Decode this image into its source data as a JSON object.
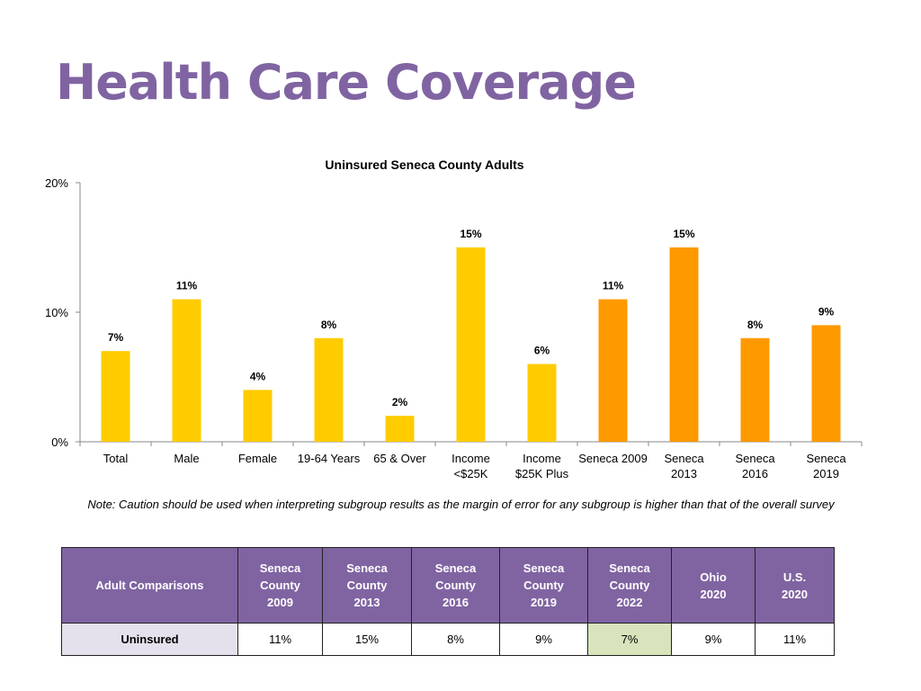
{
  "page": {
    "title": "Health Care Coverage"
  },
  "chart_data": {
    "type": "bar",
    "title": "Uninsured Seneca County Adults",
    "categories": [
      [
        "Total"
      ],
      [
        "Male"
      ],
      [
        "Female"
      ],
      [
        "19-64 Years"
      ],
      [
        "65 & Over"
      ],
      [
        "Income",
        "<$25K"
      ],
      [
        "Income",
        "$25K Plus"
      ],
      [
        "Seneca 2009"
      ],
      [
        "Seneca",
        "2013"
      ],
      [
        "Seneca",
        "2016"
      ],
      [
        "Seneca",
        "2019"
      ]
    ],
    "values": [
      7,
      11,
      4,
      8,
      2,
      15,
      6,
      11,
      15,
      8,
      9
    ],
    "data_labels": [
      "7%",
      "11%",
      "4%",
      "8%",
      "2%",
      "15%",
      "6%",
      "11%",
      "15%",
      "8%",
      "9%"
    ],
    "bar_colors": [
      "#FFCC00",
      "#FFCC00",
      "#FFCC00",
      "#FFCC00",
      "#FFCC00",
      "#FFCC00",
      "#FFCC00",
      "#FF9900",
      "#FF9900",
      "#FF9900",
      "#FF9900"
    ],
    "ylim": [
      0,
      20
    ],
    "yticks": [
      0,
      10,
      20
    ],
    "ytick_labels": [
      "0%",
      "10%",
      "20%"
    ],
    "xlabel": "",
    "ylabel": "",
    "grid": false
  },
  "note": "Note: Caution should be used when interpreting subgroup results as the margin of error for any subgroup is higher than that of the overall survey",
  "table": {
    "corner_header": "Adult Comparisons",
    "headers": [
      [
        "Seneca",
        "County",
        "2009"
      ],
      [
        "Seneca",
        "County",
        "2013"
      ],
      [
        "Seneca",
        "County",
        "2016"
      ],
      [
        "Seneca",
        "County",
        "2019"
      ],
      [
        "Seneca",
        "County",
        "2022"
      ],
      [
        "Ohio",
        "2020"
      ],
      [
        "U.S.",
        "2020"
      ]
    ],
    "row_label": "Uninsured",
    "row_values": [
      "11%",
      "15%",
      "8%",
      "9%",
      "7%",
      "9%",
      "11%"
    ]
  },
  "colors": {
    "title": "#8064A2",
    "header_bg": "#8064A2",
    "row_label_bg": "#E4E1EC",
    "highlight_bg": "#D8E4BC",
    "bar_subgroup": "#FFCC00",
    "bar_trend": "#FF9900"
  }
}
